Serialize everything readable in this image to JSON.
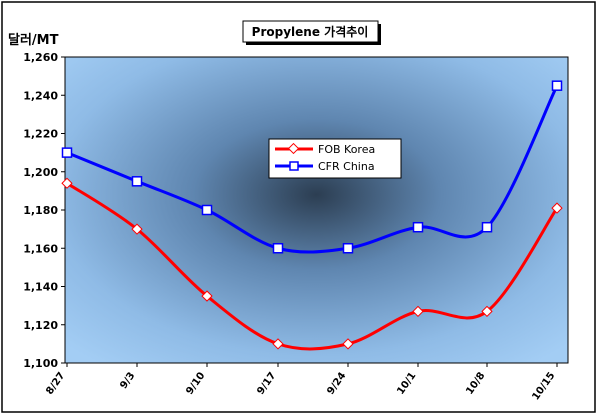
{
  "chart_data": {
    "type": "line",
    "title": "Propylene 가격추이",
    "ylabel": "달러/MT",
    "xlabel": "",
    "categories": [
      "8/27",
      "9/3",
      "9/10",
      "9/17",
      "9/24",
      "10/1",
      "10/8",
      "10/15"
    ],
    "ylim": [
      1100,
      1260
    ],
    "yticks": [
      "1,100",
      "1,120",
      "1,140",
      "1,160",
      "1,180",
      "1,200",
      "1,220",
      "1,240",
      "1,260"
    ],
    "grid": false,
    "legend_position": "center-right",
    "series": [
      {
        "name": "FOB Korea",
        "color": "#ff0000",
        "marker": "diamond",
        "values": [
          1194,
          1170,
          1135,
          1110,
          1110,
          1127,
          1127,
          1181
        ]
      },
      {
        "name": "CFR China",
        "color": "#0000ff",
        "marker": "square",
        "values": [
          1210,
          1195,
          1180,
          1160,
          1160,
          1171,
          1171,
          1245
        ]
      }
    ]
  }
}
